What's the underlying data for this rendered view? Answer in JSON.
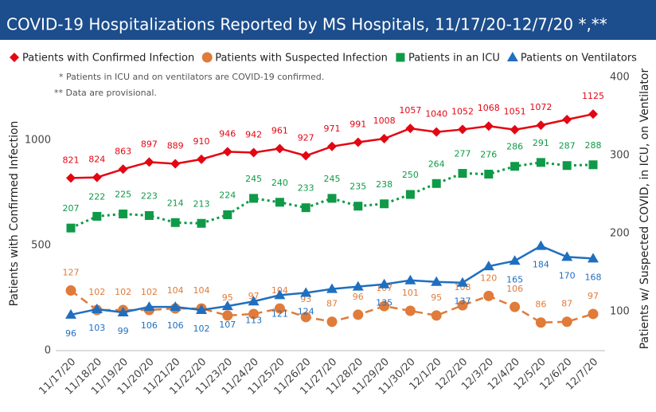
{
  "chart_data": {
    "type": "line",
    "title": "COVID-19 Hospitalizations Reported by MS Hospitals, 11/17/20-12/7/20 *,**",
    "notes": [
      "* Patients in ICU and on ventilators are COVID-19 confirmed.",
      "** Data are provisional."
    ],
    "y_label": "Patients with Confirmed Infection",
    "y2_label": "Patients w/ Suspected COVID, in ICU, on Ventilator",
    "categories": [
      "11/17/20",
      "11/18/20",
      "11/19/20",
      "11/20/20",
      "11/21/20",
      "11/22/20",
      "11/23/20",
      "11/24/20",
      "11/25/20",
      "11/26/20",
      "11/27/20",
      "11/28/20",
      "11/29/20",
      "11/30/20",
      "12/1/20",
      "12/2/20",
      "12/3/20",
      "12/4/20",
      "12/5/20",
      "12/6/20",
      "12/7/20"
    ],
    "ylim": [
      0,
      1300
    ],
    "yticks": [
      0,
      500,
      1000
    ],
    "y2lim": [
      50,
      400
    ],
    "y2ticks": [
      100,
      200,
      300,
      400
    ],
    "grid": false,
    "series": [
      {
        "name": "Patients with Confirmed Infection",
        "color": "#e30613",
        "marker": "diamond",
        "dash": "solid",
        "values": [
          821,
          824,
          863,
          897,
          889,
          910,
          946,
          942,
          961,
          927,
          971,
          991,
          1008,
          1057,
          1040,
          1052,
          1068,
          1051,
          1072,
          1099,
          1125
        ],
        "value_labels": [
          "821",
          "824",
          "863",
          "897",
          "889",
          "910",
          "946",
          "942",
          "961",
          "927",
          "971",
          "991",
          "1008",
          "1057",
          "1040",
          "1052",
          "1068",
          "1051",
          "1072",
          null,
          "1125"
        ]
      },
      {
        "name": "Patients with Suspected Infection",
        "color": "#e07b39",
        "marker": "circle",
        "dash": "dashed",
        "axis": "y2",
        "values": [
          127,
          102,
          102,
          102,
          104,
          104,
          95,
          97,
          104,
          93,
          87,
          96,
          107,
          101,
          95,
          108,
          120,
          106,
          86,
          87,
          97
        ]
      },
      {
        "name": "Patients in an ICU",
        "color": "#0f9a48",
        "marker": "square",
        "dash": "dotted",
        "axis": "y2",
        "values": [
          207,
          222,
          225,
          223,
          214,
          213,
          224,
          245,
          240,
          233,
          245,
          235,
          238,
          250,
          264,
          277,
          276,
          286,
          291,
          287,
          288
        ]
      },
      {
        "name": "Patients on Ventilators",
        "color": "#1f6fc0",
        "marker": "triangle",
        "dash": "solid",
        "axis": "y2",
        "values": [
          96,
          103,
          99,
          106,
          106,
          102,
          107,
          113,
          121,
          124,
          129,
          132,
          135,
          140,
          138,
          137,
          158,
          165,
          184,
          170,
          168
        ],
        "value_labels": [
          "96",
          "103",
          "99",
          "106",
          "106",
          "102",
          "107",
          "113",
          "121",
          "124",
          null,
          null,
          "135",
          null,
          null,
          "137",
          null,
          "165",
          "184",
          "170",
          "168"
        ]
      }
    ]
  }
}
